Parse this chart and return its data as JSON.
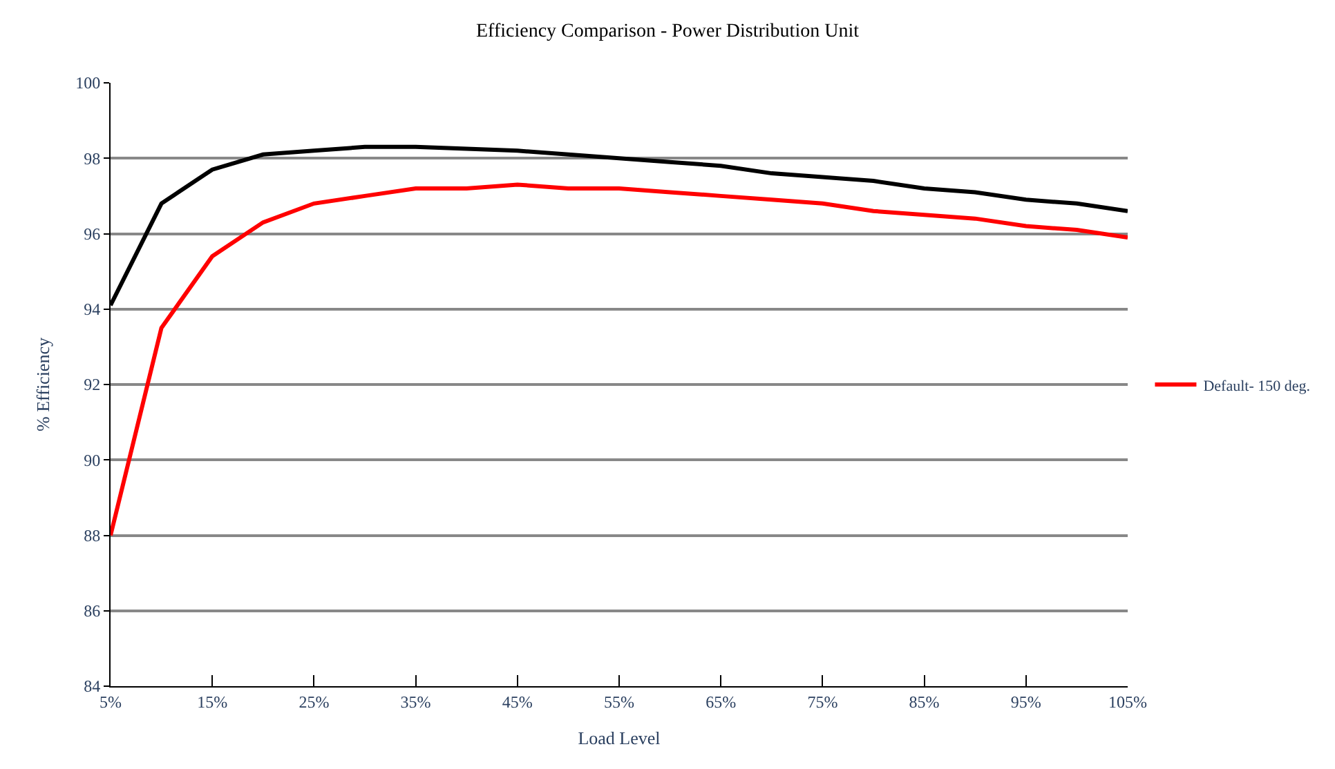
{
  "chart_data": {
    "type": "line",
    "title": "Efficiency Comparison - Power Distribution Unit",
    "xlabel": "Load Level",
    "ylabel": "% Efficiency",
    "x": [
      5,
      10,
      15,
      20,
      25,
      30,
      35,
      40,
      45,
      50,
      55,
      60,
      65,
      70,
      75,
      80,
      85,
      90,
      95,
      100,
      105
    ],
    "series": [
      {
        "color": "#000000",
        "values": [
          94.1,
          96.8,
          97.7,
          98.1,
          98.2,
          98.3,
          98.3,
          98.25,
          98.2,
          98.1,
          98.0,
          97.9,
          97.8,
          97.6,
          97.5,
          97.4,
          97.2,
          97.1,
          96.9,
          96.8,
          96.6
        ]
      },
      {
        "name": "Default- 150 deg.",
        "color": "#ff0000",
        "values": [
          88.0,
          93.5,
          95.4,
          96.3,
          96.8,
          97.0,
          97.2,
          97.2,
          97.3,
          97.2,
          97.2,
          97.1,
          97.0,
          96.9,
          96.8,
          96.6,
          96.5,
          96.4,
          96.2,
          96.1,
          95.9
        ]
      }
    ],
    "xlim": [
      5,
      105
    ],
    "xticks": [
      {
        "value": 5,
        "label": "5%"
      },
      {
        "value": 15,
        "label": "15%"
      },
      {
        "value": 25,
        "label": "25%"
      },
      {
        "value": 35,
        "label": "35%"
      },
      {
        "value": 45,
        "label": "45%"
      },
      {
        "value": 55,
        "label": "55%"
      },
      {
        "value": 65,
        "label": "65%"
      },
      {
        "value": 75,
        "label": "75%"
      },
      {
        "value": 85,
        "label": "85%"
      },
      {
        "value": 95,
        "label": "95%"
      },
      {
        "value": 105,
        "label": "105%"
      }
    ],
    "ylim": [
      84,
      100
    ],
    "yticks": [
      84,
      86,
      88,
      90,
      92,
      94,
      96,
      98,
      100
    ],
    "grid": "y",
    "legend": "right",
    "marker": "none",
    "line_style": "solid"
  }
}
